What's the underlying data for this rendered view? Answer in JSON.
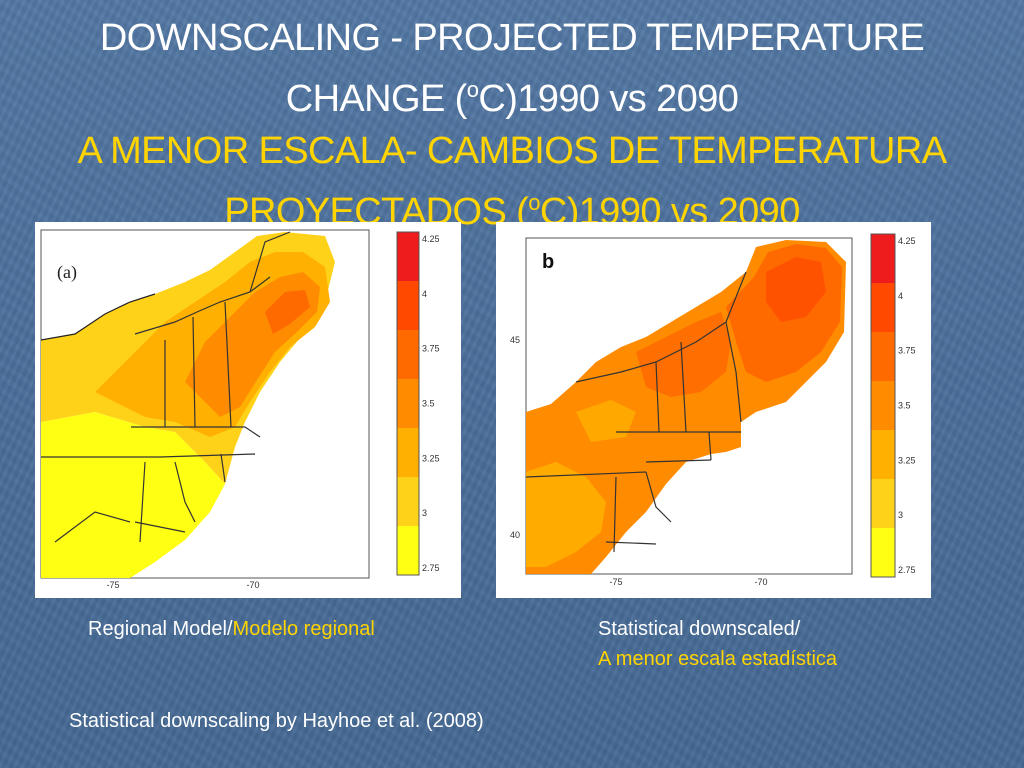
{
  "slide": {
    "title_en_line1": "DOWNSCALING - PROJECTED TEMPERATURE",
    "title_en_line2_pre": "CHANGE (",
    "title_en_degree": "o",
    "title_en_line2_post": "C)1990 vs 2090",
    "title_es_line1": "A MENOR ESCALA- CAMBIOS DE TEMPERATURA",
    "title_es_line2_pre": "PROYECTADOS (",
    "title_es_degree": "o",
    "title_es_line2_post": "C)1990 vs 2090",
    "colors": {
      "background": "#4a6e9a",
      "english_text": "#ffffff",
      "spanish_text": "#ffd400"
    }
  },
  "map_a": {
    "panel_label": "(a)",
    "legend_ticks": [
      "4.25",
      "4",
      "3.75",
      "3.5",
      "3.25",
      "3",
      "2.75"
    ],
    "x_tick_labels": [
      "-75",
      "-70"
    ]
  },
  "map_b": {
    "panel_label": "b",
    "legend_ticks": [
      "4.25",
      "4",
      "3.75",
      "3.5",
      "3.25",
      "3",
      "2.75"
    ],
    "x_tick_labels": [
      "-75",
      "-70"
    ],
    "y_tick_labels": [
      "45",
      "40"
    ]
  },
  "legend_colors": [
    "#ee1c1c",
    "#ff4800",
    "#ff6a00",
    "#ff8c00",
    "#ffb000",
    "#ffd21a",
    "#ffff14"
  ],
  "captions": {
    "regional_en": "Regional Model/",
    "regional_es": "Modelo regional",
    "statistical_en": "Statistical downscaled/",
    "statistical_es": "A menor escala estadística",
    "source": "Statistical downscaling by Hayhoe et al. (2008)"
  }
}
